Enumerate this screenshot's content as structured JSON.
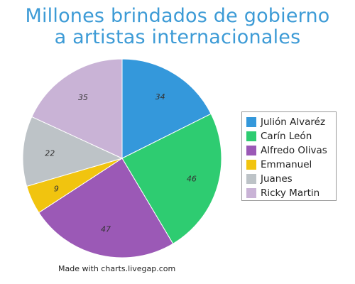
{
  "chart_data": {
    "type": "pie",
    "title_lines": [
      "Millones brindados de gobierno",
      "a artistas internacionales"
    ],
    "categories": [
      "Julión Alvaréz",
      "Carín León",
      "Alfredo Olivas",
      "Emmanuel",
      "Juanes",
      "Ricky Martin"
    ],
    "values": [
      34,
      46,
      47,
      9,
      22,
      35
    ],
    "colors": [
      "#3498db",
      "#2ecc71",
      "#9b59b6",
      "#f1c40f",
      "#bdc3c7",
      "#c9b3d6"
    ],
    "start_angle_deg": 0,
    "direction": "clockwise",
    "legend_position": "right",
    "data_labels": true
  },
  "footer": {
    "credit": "Made with charts.livegap.com"
  }
}
